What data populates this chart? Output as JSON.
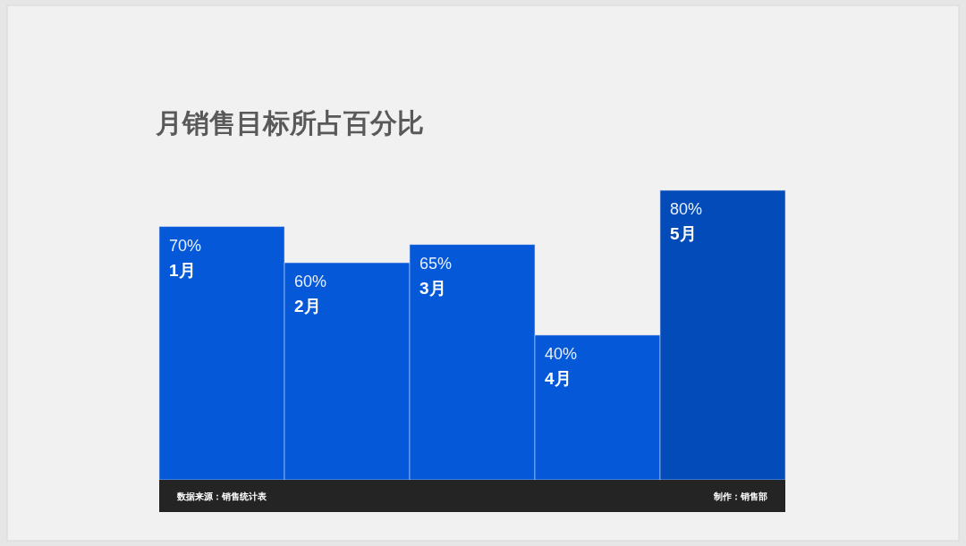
{
  "chart_data": {
    "type": "bar",
    "title": "月销售目标所占百分比",
    "categories": [
      "1月",
      "2月",
      "3月",
      "4月",
      "5月"
    ],
    "values": [
      70,
      60,
      65,
      40,
      80
    ],
    "value_labels": [
      "70%",
      "60%",
      "65%",
      "40%",
      "80%"
    ],
    "colors": [
      "#0559d9",
      "#0559d9",
      "#0559d9",
      "#0559d9",
      "#034bb8"
    ],
    "annotations": [
      "数据来源：销售统计表",
      "制作：销售部"
    ]
  }
}
